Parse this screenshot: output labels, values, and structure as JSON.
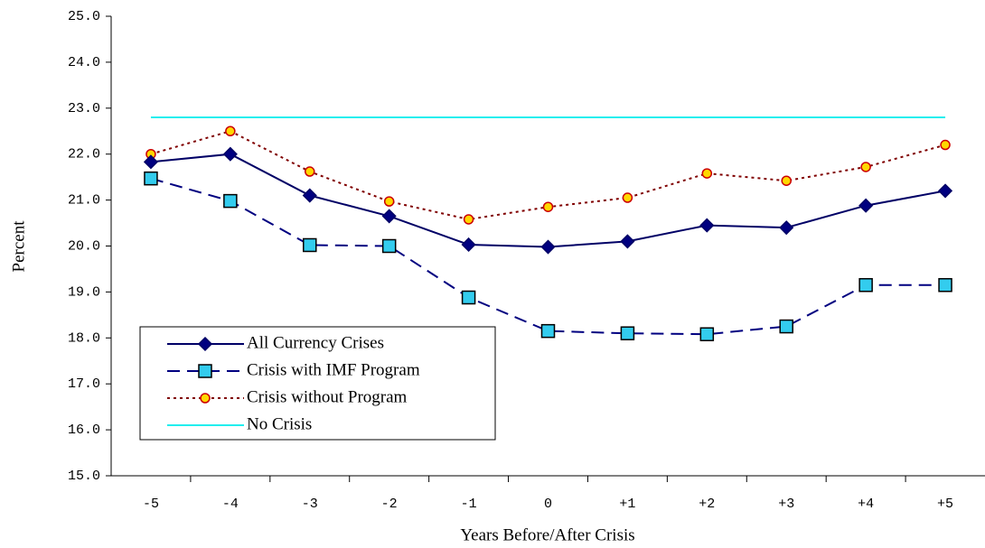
{
  "chart_data": {
    "type": "line",
    "x_label": "Years Before/After Crisis",
    "y_label": "Percent",
    "categories": [
      "-5",
      "-4",
      "-3",
      "-2",
      "-1",
      "0",
      "+1",
      "+2",
      "+3",
      "+4",
      "+5"
    ],
    "ylim": [
      15,
      25
    ],
    "yticks": [
      {
        "value": 15,
        "label": "15.0"
      },
      {
        "value": 16,
        "label": "16.0"
      },
      {
        "value": 17,
        "label": "17.0"
      },
      {
        "value": 18,
        "label": "18.0"
      },
      {
        "value": 19,
        "label": "19.0"
      },
      {
        "value": 20,
        "label": "20.0"
      },
      {
        "value": 21,
        "label": "21.0"
      },
      {
        "value": 22,
        "label": "22.0"
      },
      {
        "value": 23,
        "label": "23.0"
      },
      {
        "value": 24,
        "label": "24.0"
      },
      {
        "value": 25,
        "label": "25.0"
      }
    ],
    "grid": false,
    "legend": "lower-left",
    "series": [
      {
        "name": "All Currency Crises",
        "color": "#000066",
        "marker": "diamond",
        "marker_fill": "#000080",
        "dash": "solid",
        "values": [
          21.83,
          22.0,
          21.1,
          20.65,
          20.03,
          19.98,
          20.1,
          20.45,
          20.4,
          20.88,
          21.2
        ]
      },
      {
        "name": "Crisis with IMF Program",
        "color": "#000080",
        "marker": "square",
        "marker_fill": "#33ccee",
        "dash": "dashed",
        "values": [
          21.47,
          20.98,
          20.02,
          20.0,
          18.88,
          18.15,
          18.1,
          18.08,
          18.25,
          19.15,
          19.15
        ]
      },
      {
        "name": "Crisis without Program",
        "color": "#800000",
        "marker": "circle",
        "marker_fill": "#ffd700",
        "dash": "dotted",
        "values": [
          22.0,
          22.5,
          21.62,
          20.97,
          20.58,
          20.85,
          21.05,
          21.58,
          21.42,
          21.72,
          22.2
        ]
      },
      {
        "name": "No Crisis",
        "color": "#22eeee",
        "marker": "none",
        "marker_fill": "#22eeee",
        "dash": "solid",
        "values": [
          22.8,
          22.8,
          22.8,
          22.8,
          22.8,
          22.8,
          22.8,
          22.8,
          22.8,
          22.8,
          22.8
        ]
      }
    ]
  }
}
